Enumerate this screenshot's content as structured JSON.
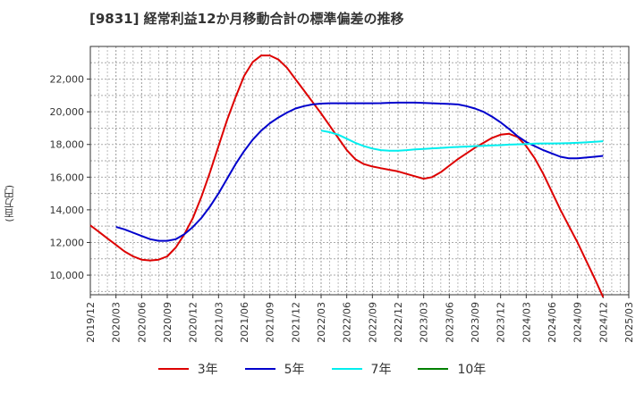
{
  "chart_data": {
    "type": "line",
    "title": "[9831]  経常利益12か月移動合計の標準偏差の推移",
    "ylabel": "(百万円)",
    "xlabel": "",
    "ylim": [
      8800,
      24000
    ],
    "yticks": [
      10000,
      12000,
      14000,
      16000,
      18000,
      20000,
      22000
    ],
    "ytick_labels": [
      "10,000",
      "12,000",
      "14,000",
      "16,000",
      "18,000",
      "20,000",
      "22,000"
    ],
    "xticks": [
      "2019/12",
      "2020/03",
      "2020/06",
      "2020/09",
      "2020/12",
      "2021/03",
      "2021/06",
      "2021/09",
      "2021/12",
      "2022/03",
      "2022/06",
      "2022/09",
      "2022/12",
      "2023/03",
      "2023/06",
      "2023/09",
      "2023/12",
      "2024/03",
      "2024/06",
      "2024/09",
      "2024/12",
      "2025/03"
    ],
    "grid": true,
    "legend_position": "bottom",
    "series": [
      {
        "name": "3年",
        "color": "#dd0000",
        "x": [
          "2019/12",
          "2020/01",
          "2020/02",
          "2020/03",
          "2020/04",
          "2020/05",
          "2020/06",
          "2020/07",
          "2020/08",
          "2020/09",
          "2020/10",
          "2020/11",
          "2020/12",
          "2021/01",
          "2021/02",
          "2021/03",
          "2021/04",
          "2021/05",
          "2021/06",
          "2021/07",
          "2021/08",
          "2021/09",
          "2021/10",
          "2021/11",
          "2021/12",
          "2022/01",
          "2022/02",
          "2022/03",
          "2022/04",
          "2022/05",
          "2022/06",
          "2022/07",
          "2022/08",
          "2022/09",
          "2022/10",
          "2022/11",
          "2022/12",
          "2023/01",
          "2023/02",
          "2023/03",
          "2023/04",
          "2023/05",
          "2023/06",
          "2023/07",
          "2023/08",
          "2023/09",
          "2023/10",
          "2023/11",
          "2023/12",
          "2024/01",
          "2024/02",
          "2024/03",
          "2024/04",
          "2024/05",
          "2024/06",
          "2024/07",
          "2024/08",
          "2024/09",
          "2024/10",
          "2024/11",
          "2024/12"
        ],
        "values": [
          13050,
          12650,
          12250,
          11850,
          11450,
          11150,
          10950,
          10900,
          10950,
          11150,
          11700,
          12500,
          13500,
          14800,
          16300,
          17900,
          19500,
          20900,
          22200,
          23050,
          23450,
          23450,
          23200,
          22700,
          22000,
          21300,
          20600,
          19900,
          19150,
          18400,
          17650,
          17100,
          16800,
          16650,
          16550,
          16450,
          16350,
          16200,
          16050,
          15900,
          16000,
          16300,
          16700,
          17100,
          17450,
          17800,
          18100,
          18400,
          18600,
          18650,
          18450,
          17900,
          17150,
          16200,
          15100,
          14000,
          13000,
          12000,
          10900,
          9800,
          8650
        ]
      },
      {
        "name": "5年",
        "color": "#0000cc",
        "x": [
          "2020/03",
          "2020/04",
          "2020/05",
          "2020/06",
          "2020/07",
          "2020/08",
          "2020/09",
          "2020/10",
          "2020/11",
          "2020/12",
          "2021/01",
          "2021/02",
          "2021/03",
          "2021/04",
          "2021/05",
          "2021/06",
          "2021/07",
          "2021/08",
          "2021/09",
          "2021/10",
          "2021/11",
          "2021/12",
          "2022/01",
          "2022/02",
          "2022/03",
          "2022/04",
          "2022/05",
          "2022/06",
          "2022/07",
          "2022/08",
          "2022/09",
          "2022/10",
          "2022/11",
          "2022/12",
          "2023/01",
          "2023/02",
          "2023/03",
          "2023/04",
          "2023/05",
          "2023/06",
          "2023/07",
          "2023/08",
          "2023/09",
          "2023/10",
          "2023/11",
          "2023/12",
          "2024/01",
          "2024/02",
          "2024/03",
          "2024/04",
          "2024/05",
          "2024/06",
          "2024/07",
          "2024/08",
          "2024/09",
          "2024/10",
          "2024/11",
          "2024/12"
        ],
        "values": [
          12950,
          12800,
          12600,
          12400,
          12200,
          12100,
          12100,
          12200,
          12500,
          12950,
          13500,
          14200,
          15000,
          15900,
          16800,
          17600,
          18300,
          18850,
          19300,
          19650,
          19950,
          20200,
          20350,
          20450,
          20500,
          20520,
          20520,
          20520,
          20520,
          20520,
          20520,
          20530,
          20550,
          20560,
          20560,
          20560,
          20540,
          20520,
          20500,
          20480,
          20450,
          20350,
          20200,
          20000,
          19700,
          19350,
          18950,
          18500,
          18150,
          17900,
          17650,
          17450,
          17250,
          17150,
          17150,
          17200,
          17250,
          17300
        ]
      },
      {
        "name": "7年",
        "color": "#00eeee",
        "x": [
          "2022/03",
          "2022/04",
          "2022/05",
          "2022/06",
          "2022/07",
          "2022/08",
          "2022/09",
          "2022/10",
          "2022/11",
          "2022/12",
          "2023/01",
          "2023/02",
          "2023/03",
          "2023/04",
          "2023/05",
          "2023/06",
          "2023/07",
          "2023/08",
          "2023/09",
          "2023/10",
          "2023/11",
          "2023/12",
          "2024/01",
          "2024/02",
          "2024/03",
          "2024/04",
          "2024/05",
          "2024/06",
          "2024/07",
          "2024/08",
          "2024/09",
          "2024/10",
          "2024/11",
          "2024/12"
        ],
        "values": [
          18850,
          18750,
          18600,
          18350,
          18100,
          17900,
          17750,
          17650,
          17620,
          17620,
          17650,
          17700,
          17730,
          17760,
          17790,
          17820,
          17850,
          17870,
          17900,
          17920,
          17940,
          17960,
          17990,
          18010,
          18030,
          18050,
          18060,
          18060,
          18070,
          18080,
          18100,
          18130,
          18160,
          18200
        ]
      },
      {
        "name": "10年",
        "color": "#008000",
        "x": [],
        "values": []
      }
    ]
  }
}
